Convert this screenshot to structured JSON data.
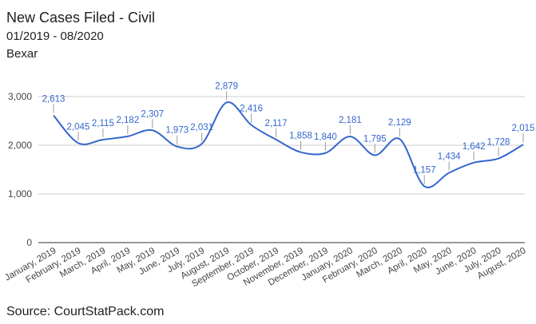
{
  "chart_data": {
    "type": "line",
    "title": "New Cases Filed - Civil",
    "subtitle": "01/2019 - 08/2020",
    "region": "Bexar",
    "source": "Source: CourtStatPack.com",
    "categories": [
      "January, 2019",
      "February, 2019",
      "March, 2019",
      "April, 2019",
      "May, 2019",
      "June, 2019",
      "July, 2019",
      "August, 2019",
      "September, 2019",
      "October, 2019",
      "November, 2019",
      "December, 2019",
      "January, 2020",
      "February, 2020",
      "March, 2020",
      "April, 2020",
      "May, 2020",
      "June, 2020",
      "July, 2020",
      "August, 2020"
    ],
    "series": [
      {
        "color": "#3366cc",
        "values": [
          2613,
          2045,
          2115,
          2182,
          2307,
          1973,
          2031,
          2879,
          2416,
          2117,
          1858,
          1840,
          2181,
          1795,
          2129,
          1157,
          1434,
          1642,
          1728,
          2015
        ],
        "value_labels": [
          "2,613",
          "2,045",
          "2,115",
          "2,182",
          "2,307",
          "1,973",
          "2,031",
          "2,879",
          "2,416",
          "2,117",
          "1,858",
          "1,840",
          "2,181",
          "1,795",
          "2,129",
          "1,157",
          "1,434",
          "1,642",
          "1,728",
          "2,015"
        ]
      }
    ],
    "ylim": [
      0,
      3000
    ],
    "yticks": [
      0,
      {
        "value": 1000,
        "label": "1,000"
      },
      {
        "value": 2000,
        "label": "2,000"
      },
      {
        "value": 3000,
        "label": "3,000"
      }
    ],
    "grid": true,
    "smooth": true
  }
}
